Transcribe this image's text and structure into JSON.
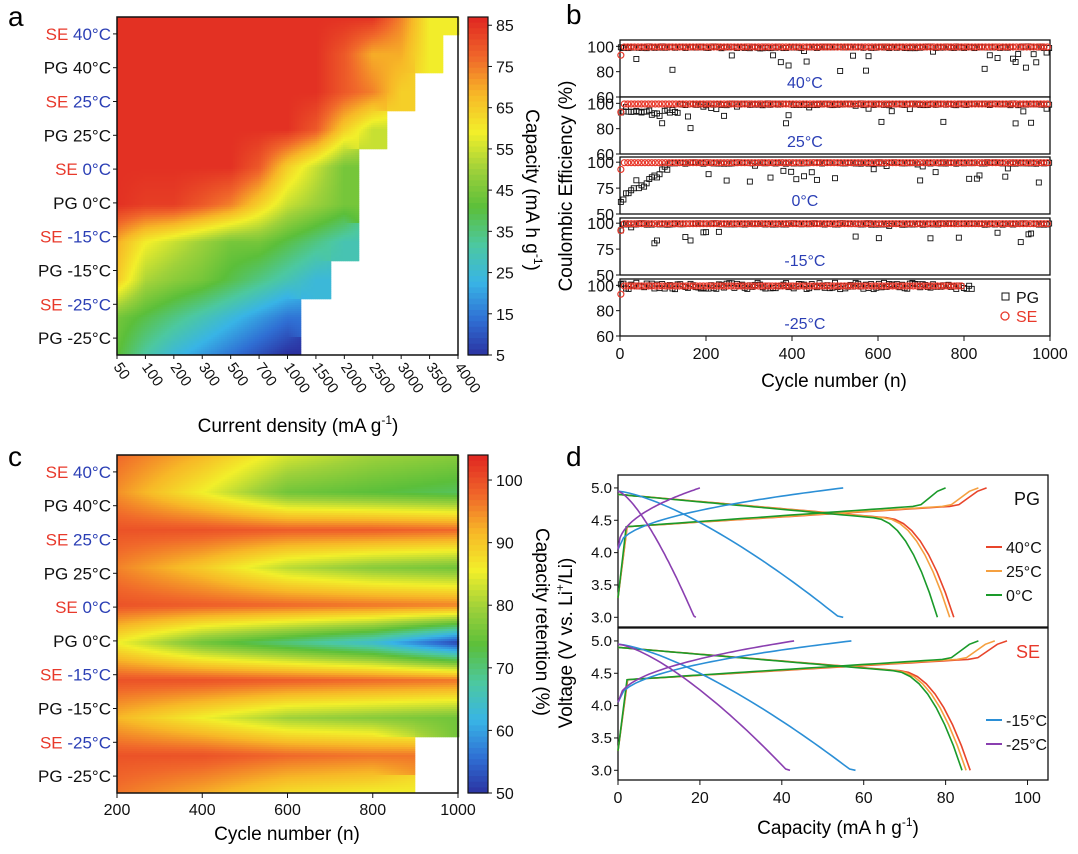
{
  "colors": {
    "pg_black": "#111111",
    "se_red": "#e8392b",
    "temp_blue": "#2b3fb5",
    "c40": "#e8452b",
    "c25": "#f5a040",
    "c0": "#1a9a2a",
    "cm15": "#2b8fd6",
    "cm25": "#8a3fb0"
  },
  "colorscale": [
    "#2b2f9e",
    "#2f6ed3",
    "#38b4e6",
    "#4cc8a0",
    "#5bbf3a",
    "#9fd13a",
    "#f2ef2a",
    "#f7b827",
    "#f0672a",
    "#e12a22"
  ],
  "row_labels": [
    {
      "type": "SE",
      "temp": "40°C"
    },
    {
      "type": "PG",
      "temp": "40°C"
    },
    {
      "type": "SE",
      "temp": "25°C"
    },
    {
      "type": "PG",
      "temp": "25°C"
    },
    {
      "type": "SE",
      "temp": "0°C"
    },
    {
      "type": "PG",
      "temp": "0°C"
    },
    {
      "type": "SE",
      "temp": "-15°C"
    },
    {
      "type": "PG",
      "temp": "-15°C"
    },
    {
      "type": "SE",
      "temp": "-25°C"
    },
    {
      "type": "PG",
      "temp": "-25°C"
    }
  ],
  "chart_data": [
    {
      "panel": "a",
      "type": "heatmap",
      "xlabel": "Current density (mA g-1)",
      "colorbar_label": "Capacity (mA h g-1)",
      "colorbar_ticks": [
        "85",
        "75",
        "65",
        "55",
        "45",
        "35",
        "25",
        "15",
        "5"
      ],
      "colorbar_range": [
        5,
        87
      ],
      "x": [
        "50",
        "100",
        "200",
        "300",
        "500",
        "700",
        "1000",
        "1500",
        "2000",
        "2500",
        "3000",
        "3500",
        "4000"
      ],
      "rows": [
        "SE 40°C",
        "PG 40°C",
        "SE 25°C",
        "PG 25°C",
        "SE 0°C",
        "PG 0°C",
        "SE -15°C",
        "PG -15°C",
        "SE -25°C",
        "PG -25°C"
      ],
      "values": [
        [
          86,
          86,
          86,
          86,
          86,
          86,
          86,
          86,
          86,
          86,
          75,
          60,
          60
        ],
        [
          86,
          86,
          86,
          86,
          86,
          86,
          86,
          86,
          80,
          70,
          70,
          60,
          null
        ],
        [
          86,
          86,
          86,
          86,
          86,
          86,
          86,
          86,
          80,
          75,
          65,
          null,
          null
        ],
        [
          86,
          86,
          86,
          86,
          86,
          86,
          86,
          80,
          65,
          55,
          null,
          null,
          null
        ],
        [
          86,
          86,
          86,
          86,
          86,
          80,
          65,
          55,
          45,
          null,
          null,
          null,
          null
        ],
        [
          86,
          84,
          84,
          80,
          75,
          65,
          55,
          50,
          45,
          null,
          null,
          null,
          null
        ],
        [
          70,
          60,
          55,
          50,
          45,
          45,
          40,
          35,
          30,
          null,
          null,
          null,
          null
        ],
        [
          66,
          52,
          48,
          45,
          40,
          35,
          30,
          25,
          null,
          null,
          null,
          null,
          null
        ],
        [
          45,
          40,
          35,
          30,
          25,
          20,
          15,
          null,
          null,
          null,
          null,
          null,
          null
        ],
        [
          42,
          32,
          25,
          20,
          15,
          10,
          5,
          null,
          null,
          null,
          null,
          null,
          null
        ]
      ]
    },
    {
      "panel": "b",
      "type": "scatter",
      "xlabel": "Cycle number (n)",
      "ylabel": "Coulombic Efficiency (%)",
      "xlim": [
        0,
        1000
      ],
      "x_ticks": [
        "0",
        "200",
        "400",
        "600",
        "800",
        "1000"
      ],
      "legend": [
        "PG",
        "SE"
      ],
      "subplots": [
        {
          "label": "40°C",
          "ylim": [
            60,
            105
          ],
          "y_ticks": [
            "100",
            "80",
            "60"
          ],
          "pg_end": 1000,
          "se_end": 1000
        },
        {
          "label": "25°C",
          "ylim": [
            60,
            105
          ],
          "y_ticks": [
            "100",
            "80",
            "60"
          ],
          "pg_end": 1000,
          "se_end": 1000
        },
        {
          "label": "0°C",
          "ylim": [
            50,
            105
          ],
          "y_ticks": [
            "100",
            "75",
            "50"
          ],
          "pg_end": 1000,
          "se_end": 1000
        },
        {
          "label": "-15°C",
          "ylim": [
            50,
            105
          ],
          "y_ticks": [
            "100",
            "75",
            "50"
          ],
          "pg_end": 1000,
          "se_end": 1000
        },
        {
          "label": "-25°C",
          "ylim": [
            60,
            105
          ],
          "y_ticks": [
            "100",
            "80",
            "60"
          ],
          "pg_end": 820,
          "se_end": 800
        }
      ]
    },
    {
      "panel": "c",
      "type": "heatmap",
      "xlabel": "Cycle number (n)",
      "colorbar_label": "Capacity retention (%)",
      "colorbar_ticks": [
        "100",
        "90",
        "80",
        "70",
        "60",
        "50"
      ],
      "colorbar_range": [
        50,
        104
      ],
      "x_ticks": [
        "200",
        "400",
        "600",
        "800",
        "1000"
      ],
      "rows": [
        "SE 40°C",
        "PG 40°C",
        "SE 25°C",
        "PG 25°C",
        "SE 0°C",
        "PG 0°C",
        "SE -15°C",
        "PG -15°C",
        "SE -25°C",
        "PG -25°C"
      ],
      "x": [
        200,
        400,
        600,
        800,
        1000
      ],
      "values": [
        [
          98,
          92,
          84,
          80,
          78
        ],
        [
          95,
          86,
          76,
          74,
          72
        ],
        [
          100,
          100,
          99,
          99,
          98
        ],
        [
          96,
          90,
          82,
          78,
          76
        ],
        [
          100,
          99,
          98,
          97,
          96
        ],
        [
          86,
          76,
          70,
          64,
          52
        ],
        [
          100,
          100,
          99,
          98,
          97
        ],
        [
          92,
          86,
          80,
          78,
          76
        ],
        [
          100,
          100,
          98,
          97,
          null
        ],
        [
          97,
          93,
          88,
          86,
          null
        ]
      ]
    },
    {
      "panel": "d",
      "type": "line",
      "xlabel": "Capacity (mA h g-1)",
      "ylabel": "Voltage (V vs. Li+/Li)",
      "xlim": [
        0,
        105
      ],
      "x_ticks": [
        "0",
        "20",
        "40",
        "60",
        "80",
        "100"
      ],
      "y_ticks": [
        "5.0",
        "4.5",
        "4.0",
        "3.5",
        "3.0"
      ],
      "ylim": [
        2.85,
        5.2
      ],
      "subplots": [
        {
          "label": "PG",
          "legend": [
            "40°C",
            "25°C",
            "0°C"
          ],
          "series": [
            {
              "name": "40°C",
              "color": "c40",
              "charge_cap": 90,
              "discharge_cap": 82
            },
            {
              "name": "25°C",
              "color": "c25",
              "charge_cap": 88,
              "discharge_cap": 81
            },
            {
              "name": "0°C",
              "color": "c0",
              "charge_cap": 80,
              "discharge_cap": 78
            },
            {
              "name": "-15°C",
              "color": "cm15",
              "charge_cap": 55,
              "discharge_cap": 55
            },
            {
              "name": "-25°C",
              "color": "cm25",
              "charge_cap": 20,
              "discharge_cap": 19
            }
          ]
        },
        {
          "label": "SE",
          "legend": [
            "-15°C",
            "-25°C"
          ],
          "series": [
            {
              "name": "40°C",
              "color": "c40",
              "charge_cap": 95,
              "discharge_cap": 86
            },
            {
              "name": "25°C",
              "color": "c25",
              "charge_cap": 92,
              "discharge_cap": 85
            },
            {
              "name": "0°C",
              "color": "c0",
              "charge_cap": 88,
              "discharge_cap": 84
            },
            {
              "name": "-15°C",
              "color": "cm15",
              "charge_cap": 57,
              "discharge_cap": 58
            },
            {
              "name": "-25°C",
              "color": "cm25",
              "charge_cap": 43,
              "discharge_cap": 42
            }
          ]
        }
      ]
    }
  ],
  "panel_letters": [
    "a",
    "b",
    "c",
    "d"
  ]
}
